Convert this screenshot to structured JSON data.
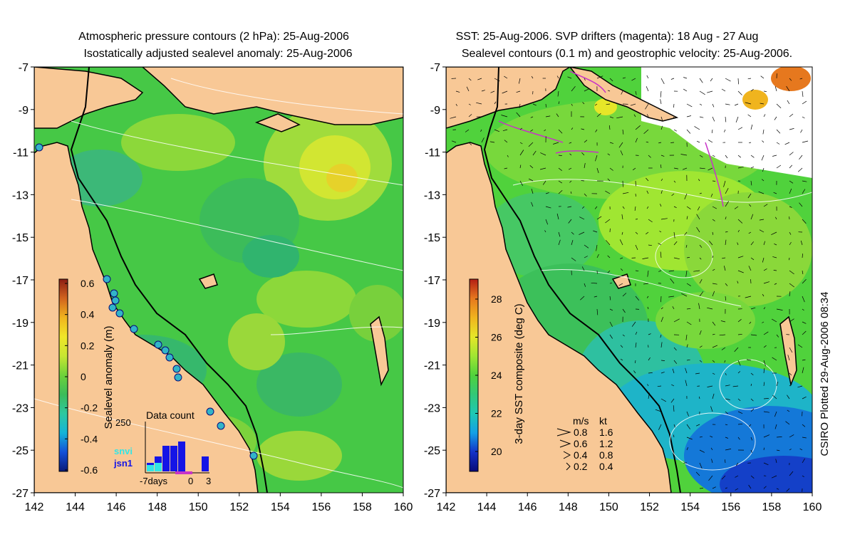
{
  "left_panel": {
    "title_line1": "Atmospheric pressure contours (2 hPa): 25-Aug-2006",
    "title_line2": "Isostatically adjusted sealevel anomaly: 25-Aug-2006",
    "colorbar": {
      "label": "Sealevel anomaly (m)",
      "ticks": [
        "0.6",
        "0.4",
        "0.2",
        "0",
        "-0.2",
        "-0.4",
        "-0.6"
      ],
      "colors": [
        "#0a1a78",
        "#1450d8",
        "#14b4d8",
        "#2ec8a0",
        "#3cbc5a",
        "#6ed23a",
        "#c8e632",
        "#f0e628",
        "#f0b41e",
        "#d2641e",
        "#8c1e14"
      ]
    },
    "data_count": {
      "title": "Data count",
      "ymax_label": "250",
      "satellite_1": "snvi",
      "satellite_2": "jsn1",
      "x_left_label": "-7days",
      "x_mid_label": "0",
      "x_right_label": "3",
      "bars_jsn1": [
        0.2,
        0.35,
        0.6,
        0.6,
        0.7,
        0,
        0,
        0.35
      ],
      "bars_snvi": [
        0.15,
        0.2,
        0,
        0,
        0,
        0,
        0,
        0
      ]
    }
  },
  "right_panel": {
    "title_line1": "SST: 25-Aug-2006. SVP drifters (magenta): 18 Aug - 27 Aug",
    "title_line2": "Sealevel contours (0.1 m) and geostrophic velocity: 25-Aug-2006.",
    "colorbar": {
      "label": "3-day SST composite (deg C)",
      "ticks": [
        "28",
        "26",
        "24",
        "22",
        "20"
      ],
      "colors": [
        "#0a0a78",
        "#1432c8",
        "#14a0e6",
        "#1ec8b4",
        "#32c878",
        "#50d23c",
        "#a0e632",
        "#e6e628",
        "#f0b41e",
        "#e6781e",
        "#b41e14"
      ]
    },
    "velocity_legend": {
      "header_units": "m/s",
      "header_kt": "kt",
      "rows": [
        {
          "ms": "0.8",
          "kt": "1.6"
        },
        {
          "ms": "0.6",
          "kt": "1.2"
        },
        {
          "ms": "0.4",
          "kt": "0.8"
        },
        {
          "ms": "0.2",
          "kt": "0.4"
        }
      ]
    },
    "credit": "CSIRO Plotted 29-Aug-2006 08:34"
  },
  "axes": {
    "y_labels": [
      "-7",
      "-9",
      "-11",
      "-13",
      "-15",
      "-17",
      "-19",
      "-21",
      "-23",
      "-25",
      "-27"
    ],
    "x_labels": [
      "142",
      "144",
      "146",
      "148",
      "150",
      "152",
      "154",
      "156",
      "158",
      "160"
    ]
  },
  "colors": {
    "land": "#f8c896",
    "ocean_base": "#46c846",
    "missing": "#ffffff",
    "drifter": "#c832c8",
    "tide_gauge": "#32b4c8"
  }
}
